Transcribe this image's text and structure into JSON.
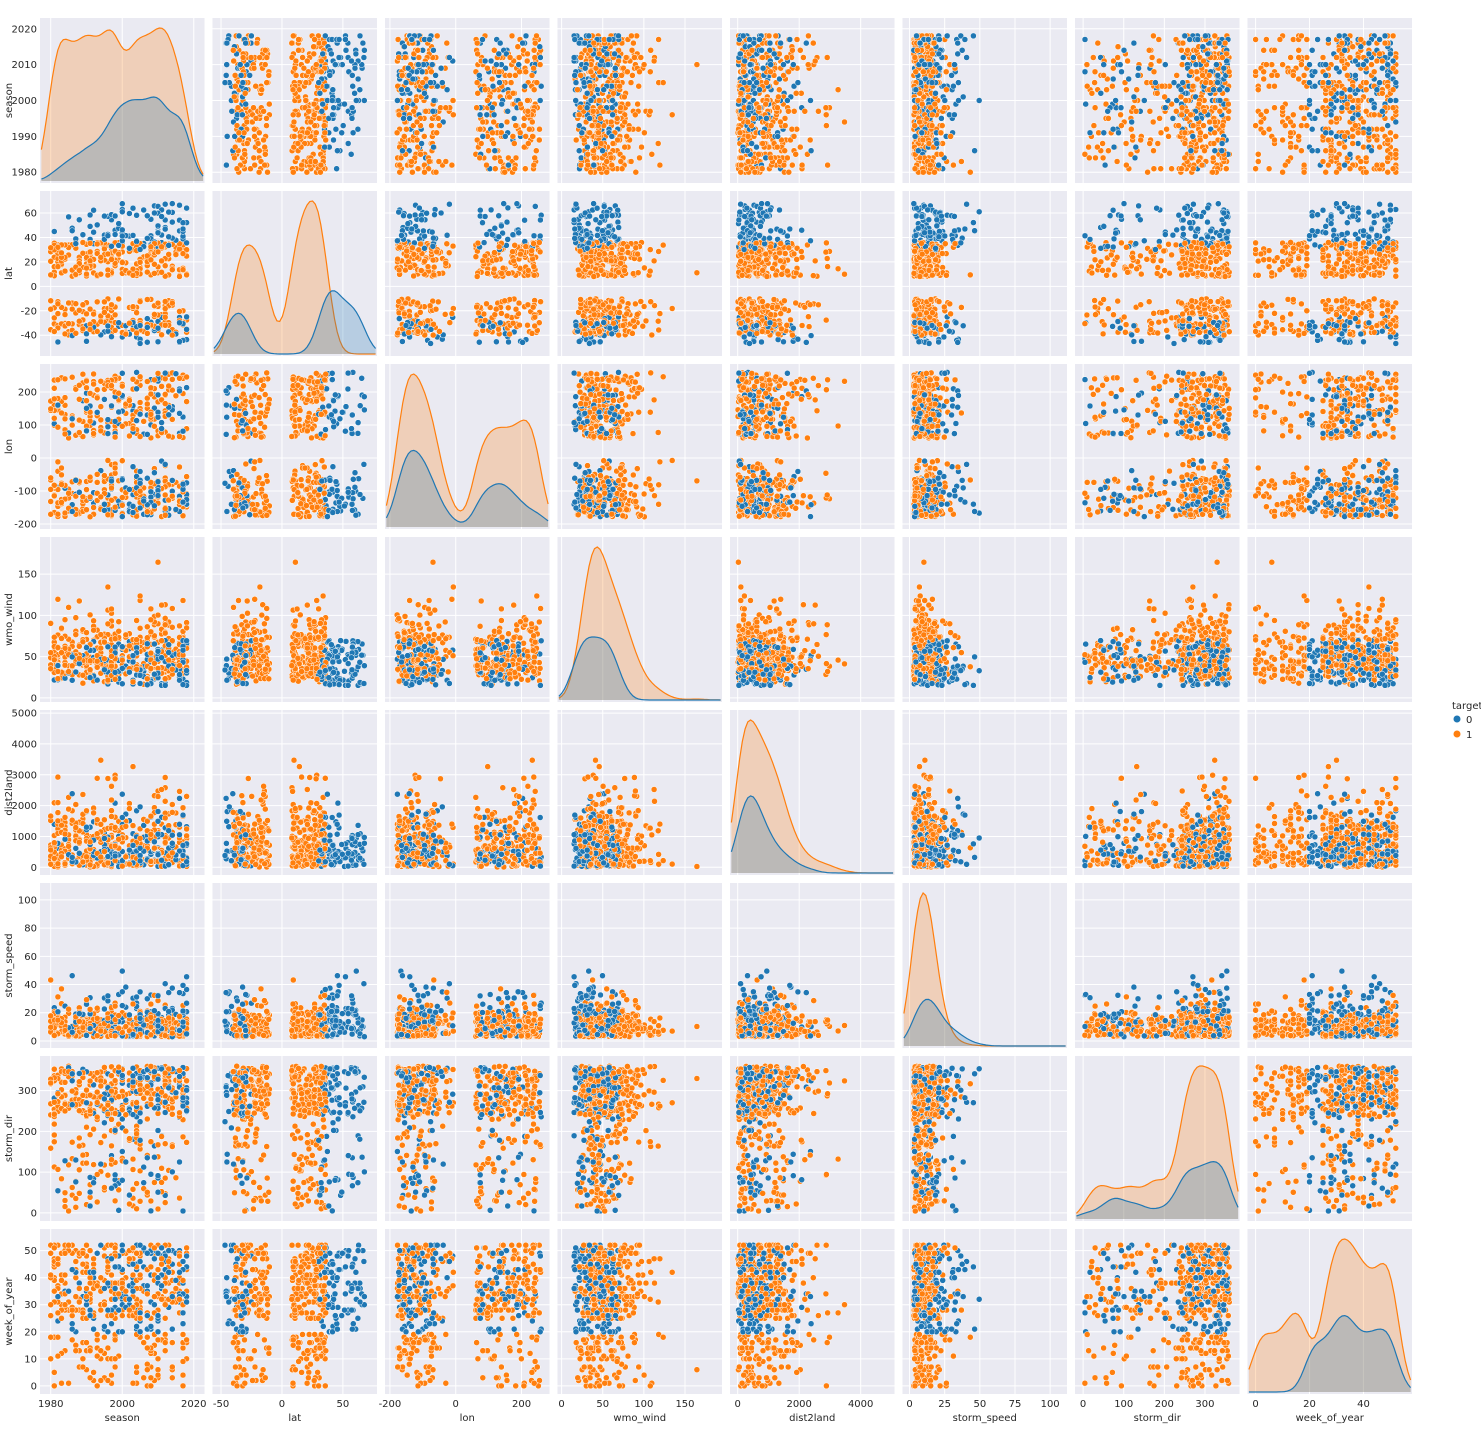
{
  "chart_data": {
    "type": "scatter",
    "variables": [
      "season",
      "lat",
      "lon",
      "wmo_wind",
      "dist2land",
      "storm_speed",
      "storm_dir",
      "week_of_year"
    ],
    "ranges": {
      "season": [
        1977,
        2023
      ],
      "lat": [
        -57,
        78
      ],
      "lon": [
        -215,
        285
      ],
      "wmo_wind": [
        -5,
        195
      ],
      "dist2land": [
        -250,
        5100
      ],
      "storm_speed": [
        -5,
        112
      ],
      "storm_dir": [
        -20,
        385
      ],
      "week_of_year": [
        -3,
        58
      ]
    },
    "ticks": {
      "season": [
        1980,
        2000,
        2020
      ],
      "lat": [
        -50,
        0,
        50
      ],
      "lon": [
        -200,
        0,
        200
      ],
      "wmo_wind": [
        0,
        50,
        100,
        150,
        200
      ],
      "dist2land": [
        0,
        2000,
        4000
      ],
      "storm_speed": [
        0,
        25,
        50,
        75,
        100
      ],
      "storm_dir": [
        0,
        100,
        200,
        300,
        400
      ],
      "week_of_year": [
        0,
        20,
        40,
        60
      ]
    },
    "yticks": {
      "season": [
        1980,
        1990,
        2000,
        2010,
        2020
      ],
      "lat": [
        -40,
        -20,
        0,
        20,
        40,
        60
      ],
      "lon": [
        -200,
        -100,
        0,
        100,
        200
      ],
      "wmo_wind": [
        0,
        50,
        100,
        150
      ],
      "dist2land": [
        0,
        1000,
        2000,
        3000,
        4000,
        5000
      ],
      "storm_speed": [
        0,
        20,
        40,
        60,
        80,
        100
      ],
      "storm_dir": [
        0,
        100,
        200,
        300
      ],
      "week_of_year": [
        0,
        10,
        20,
        30,
        40,
        50
      ]
    },
    "legend": {
      "title": "target",
      "placement": "right",
      "entries": [
        {
          "label": "0",
          "color": "#1f77b4"
        },
        {
          "label": "1",
          "color": "#ff7f0e"
        }
      ]
    },
    "colors": {
      "class0": "#1f77b4",
      "class1": "#ff7f0e",
      "panel": "#eaeaf2"
    },
    "grid": true,
    "diagonal": "kde"
  }
}
